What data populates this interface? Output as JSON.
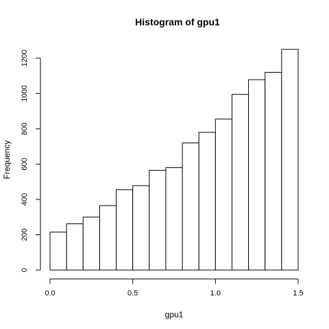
{
  "chart_data": {
    "type": "bar",
    "title": "Histogram of gpu1",
    "xlabel": "gpu1",
    "ylabel": "Frequency",
    "bin_edges": [
      0.0,
      0.1,
      0.2,
      0.3,
      0.4,
      0.5,
      0.6,
      0.7,
      0.8,
      0.9,
      1.0,
      1.1,
      1.2,
      1.3,
      1.4,
      1.5
    ],
    "values": [
      215,
      262,
      300,
      365,
      455,
      478,
      565,
      580,
      720,
      780,
      855,
      995,
      1078,
      1120,
      1250
    ],
    "xlim": [
      0.0,
      1.5
    ],
    "ylim": [
      0,
      1250
    ],
    "xticks": [
      0.0,
      0.5,
      1.0,
      1.5
    ],
    "xtick_labels": [
      "0.0",
      "0.5",
      "1.0",
      "1.5"
    ],
    "yticks": [
      0,
      200,
      400,
      600,
      800,
      1000,
      1200
    ],
    "ytick_labels": [
      "0",
      "200",
      "400",
      "600",
      "800",
      "1000",
      "1200"
    ],
    "grid": false,
    "legend": false
  }
}
